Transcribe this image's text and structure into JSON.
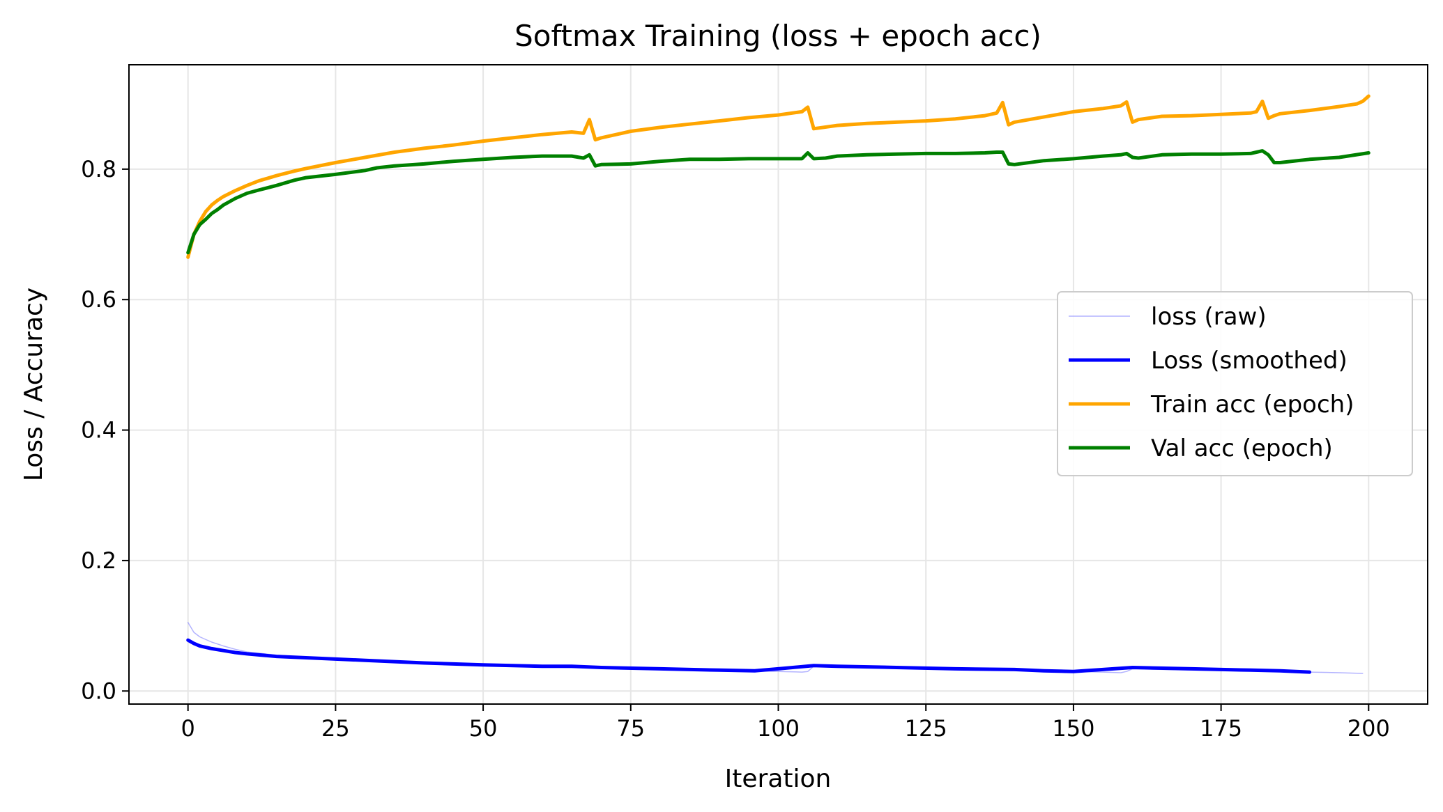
{
  "chart_data": {
    "type": "line",
    "title": "Softmax Training (loss + epoch acc)",
    "xlabel": "Iteration",
    "ylabel": "Loss / Accuracy",
    "xlim": [
      -10,
      210
    ],
    "ylim": [
      -0.02,
      0.96
    ],
    "xticks": [
      0,
      25,
      50,
      75,
      100,
      125,
      150,
      175,
      200
    ],
    "yticks": [
      0.0,
      0.2,
      0.4,
      0.6,
      0.8
    ],
    "xtick_labels": [
      "0",
      "25",
      "50",
      "75",
      "100",
      "125",
      "150",
      "175",
      "200"
    ],
    "ytick_labels": [
      "0.0",
      "0.2",
      "0.4",
      "0.6",
      "0.8"
    ],
    "grid": true,
    "legend_position": "center-right",
    "series": [
      {
        "name": "loss (raw)",
        "color": "#8080ff",
        "style": "thin",
        "x": [
          0,
          1,
          2,
          4,
          6,
          8,
          10,
          15,
          20,
          30,
          40,
          50,
          60,
          70,
          80,
          90,
          95,
          100,
          104,
          105,
          106,
          110,
          120,
          130,
          140,
          150,
          155,
          158,
          159,
          160,
          170,
          180,
          190,
          195,
          199
        ],
        "y": [
          0.105,
          0.09,
          0.083,
          0.075,
          0.069,
          0.064,
          0.06,
          0.055,
          0.052,
          0.047,
          0.042,
          0.039,
          0.037,
          0.035,
          0.033,
          0.032,
          0.031,
          0.03,
          0.029,
          0.03,
          0.038,
          0.037,
          0.035,
          0.033,
          0.032,
          0.03,
          0.029,
          0.028,
          0.03,
          0.034,
          0.032,
          0.031,
          0.029,
          0.028,
          0.027
        ]
      },
      {
        "name": "Loss (smoothed)",
        "color": "#0000ff",
        "style": "thick",
        "x": [
          0,
          1,
          2,
          4,
          6,
          8,
          10,
          15,
          20,
          25,
          30,
          40,
          50,
          60,
          65,
          70,
          80,
          90,
          96,
          100,
          106,
          110,
          120,
          130,
          140,
          145,
          150,
          155,
          160,
          170,
          180,
          185,
          190
        ],
        "y": [
          0.078,
          0.073,
          0.069,
          0.065,
          0.062,
          0.059,
          0.057,
          0.053,
          0.051,
          0.049,
          0.047,
          0.043,
          0.04,
          0.038,
          0.038,
          0.036,
          0.034,
          0.032,
          0.031,
          0.034,
          0.039,
          0.038,
          0.036,
          0.034,
          0.033,
          0.031,
          0.03,
          0.033,
          0.036,
          0.034,
          0.032,
          0.031,
          0.029
        ]
      },
      {
        "name": "Train acc (epoch)",
        "color": "#ffa500",
        "style": "thick",
        "x": [
          0,
          1,
          2,
          3,
          4,
          5,
          6,
          8,
          10,
          12,
          15,
          18,
          20,
          25,
          30,
          35,
          40,
          45,
          50,
          55,
          60,
          65,
          67,
          68,
          69,
          70,
          75,
          80,
          85,
          90,
          95,
          100,
          104,
          105,
          106,
          110,
          115,
          120,
          125,
          130,
          135,
          137,
          138,
          139,
          140,
          145,
          150,
          155,
          158,
          159,
          160,
          161,
          165,
          170,
          175,
          180,
          181,
          182,
          183,
          184,
          185,
          190,
          195,
          198,
          199,
          200
        ],
        "y": [
          0.665,
          0.7,
          0.72,
          0.735,
          0.745,
          0.752,
          0.758,
          0.767,
          0.775,
          0.782,
          0.79,
          0.797,
          0.801,
          0.81,
          0.818,
          0.826,
          0.832,
          0.837,
          0.843,
          0.848,
          0.853,
          0.857,
          0.855,
          0.876,
          0.845,
          0.848,
          0.858,
          0.864,
          0.869,
          0.874,
          0.879,
          0.883,
          0.888,
          0.895,
          0.862,
          0.867,
          0.87,
          0.872,
          0.874,
          0.877,
          0.882,
          0.886,
          0.902,
          0.868,
          0.872,
          0.88,
          0.888,
          0.893,
          0.897,
          0.903,
          0.872,
          0.876,
          0.881,
          0.882,
          0.884,
          0.886,
          0.888,
          0.904,
          0.878,
          0.882,
          0.885,
          0.89,
          0.896,
          0.9,
          0.904,
          0.912
        ]
      },
      {
        "name": "Val acc (epoch)",
        "color": "#008000",
        "style": "thick",
        "x": [
          0,
          1,
          2,
          3,
          4,
          5,
          6,
          8,
          10,
          12,
          15,
          18,
          20,
          25,
          30,
          32,
          35,
          40,
          45,
          50,
          55,
          60,
          65,
          67,
          68,
          69,
          70,
          75,
          80,
          85,
          90,
          95,
          100,
          104,
          105,
          106,
          108,
          110,
          115,
          120,
          125,
          130,
          135,
          137,
          138,
          139,
          140,
          145,
          150,
          155,
          158,
          159,
          160,
          161,
          165,
          170,
          175,
          180,
          181,
          182,
          183,
          184,
          185,
          190,
          195,
          200
        ],
        "y": [
          0.672,
          0.7,
          0.715,
          0.723,
          0.732,
          0.738,
          0.745,
          0.755,
          0.763,
          0.768,
          0.775,
          0.783,
          0.787,
          0.792,
          0.798,
          0.802,
          0.805,
          0.808,
          0.812,
          0.815,
          0.818,
          0.82,
          0.82,
          0.817,
          0.822,
          0.805,
          0.807,
          0.808,
          0.812,
          0.815,
          0.815,
          0.816,
          0.816,
          0.816,
          0.825,
          0.816,
          0.817,
          0.82,
          0.822,
          0.823,
          0.824,
          0.824,
          0.825,
          0.826,
          0.826,
          0.808,
          0.807,
          0.813,
          0.816,
          0.82,
          0.822,
          0.824,
          0.818,
          0.817,
          0.822,
          0.823,
          0.823,
          0.824,
          0.826,
          0.828,
          0.822,
          0.81,
          0.81,
          0.815,
          0.818,
          0.825
        ]
      }
    ]
  }
}
